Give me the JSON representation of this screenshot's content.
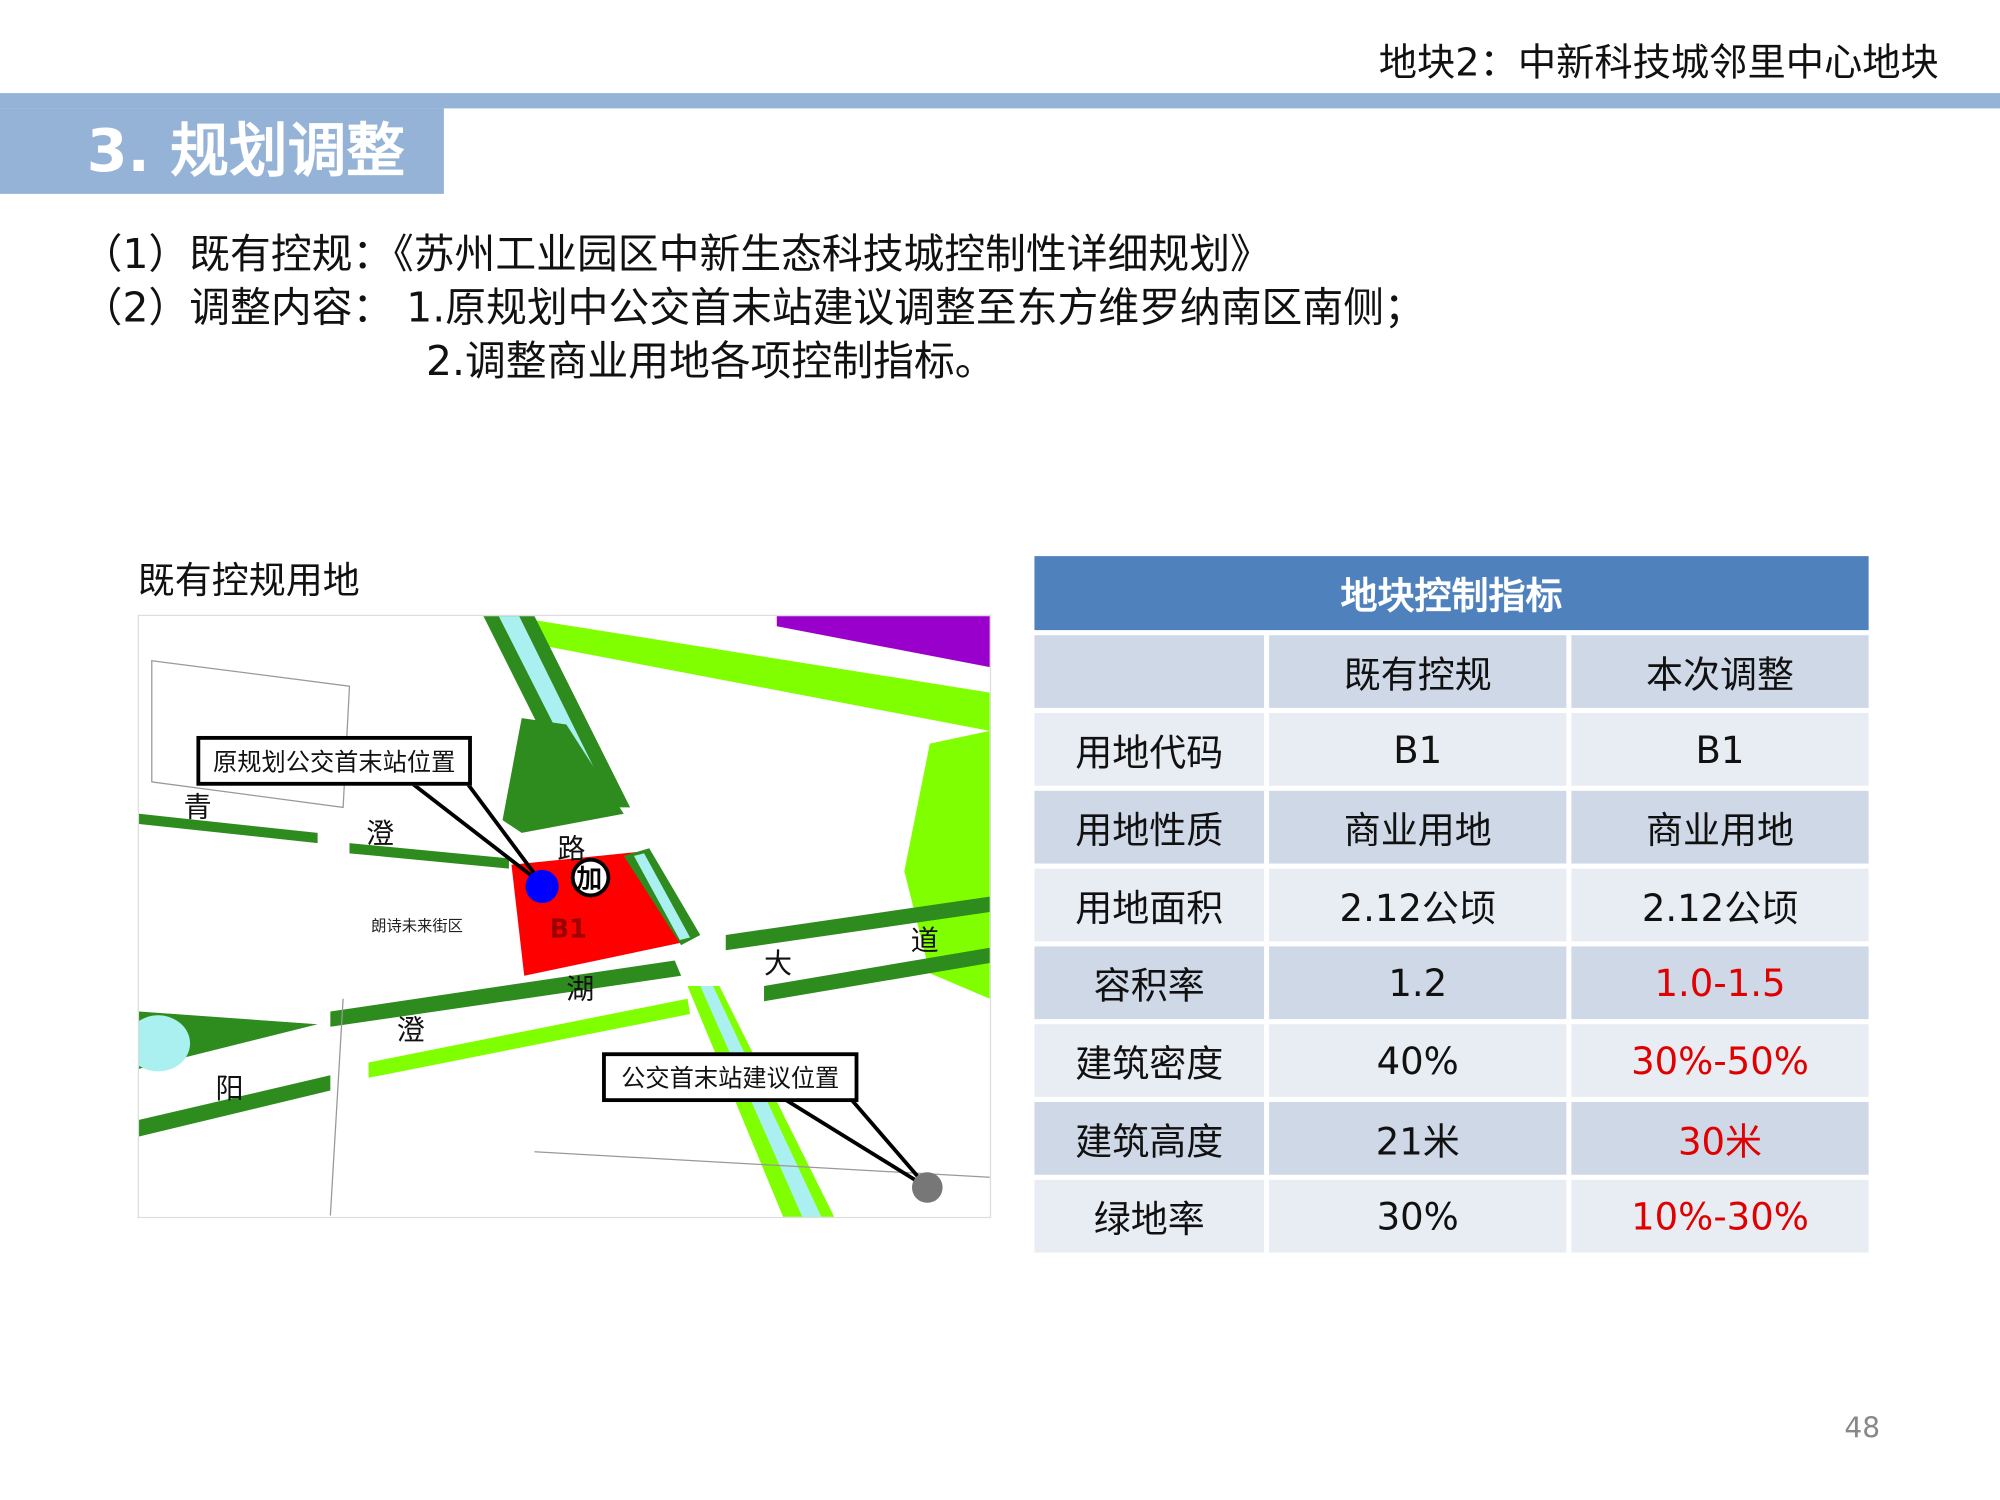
{
  "header": {
    "topic": "地块2：中新科技城邻里中心地块",
    "section": "3. 规划调整"
  },
  "intro": {
    "line1": "（1）既有控规：《苏州工业园区中新生态科技城控制性详细规划》",
    "line2": "（2）调整内容： 1.原规划中公交首末站建议调整至东方维罗纳南区南侧；",
    "line3": "2.调整商业用地各项控制指标。"
  },
  "map": {
    "title": "既有控规用地",
    "callout_original": "原规划公交首末站位置",
    "callout_proposed": "公交首末站建议位置",
    "parcel_label": "B1",
    "district_label": "朗诗未来街区",
    "road_chars": [
      "青",
      "澄",
      "路",
      "加",
      "大",
      "道",
      "湖",
      "澄",
      "阳"
    ],
    "colors": {
      "parcel": "#ff0000",
      "green_dark": "#2e8b1e",
      "green_light": "#7fff00",
      "water": "#aaf0f0",
      "original_stop": "#0000ff",
      "proposed_stop": "#777777",
      "purple": "#9900cc"
    }
  },
  "table": {
    "title": "地块控制指标",
    "headers": [
      "",
      "既有控规",
      "本次调整"
    ],
    "rows": [
      {
        "label": "用地代码",
        "existing": "B1",
        "adjusted": "B1",
        "changed": false
      },
      {
        "label": "用地性质",
        "existing": "商业用地",
        "adjusted": "商业用地",
        "changed": false
      },
      {
        "label": "用地面积",
        "existing": "2.12公顷",
        "adjusted": "2.12公顷",
        "changed": false
      },
      {
        "label": "容积率",
        "existing": "1.2",
        "adjusted": "1.0-1.5",
        "changed": true
      },
      {
        "label": "建筑密度",
        "existing": "40%",
        "adjusted": "30%-50%",
        "changed": true
      },
      {
        "label": "建筑高度",
        "existing": "21米",
        "adjusted": "30米",
        "changed": true
      },
      {
        "label": "绿地率",
        "existing": "30%",
        "adjusted": "10%-30%",
        "changed": true
      }
    ],
    "header_color": "#4f81bd",
    "changed_color": "#e00000"
  },
  "page_number": "48"
}
